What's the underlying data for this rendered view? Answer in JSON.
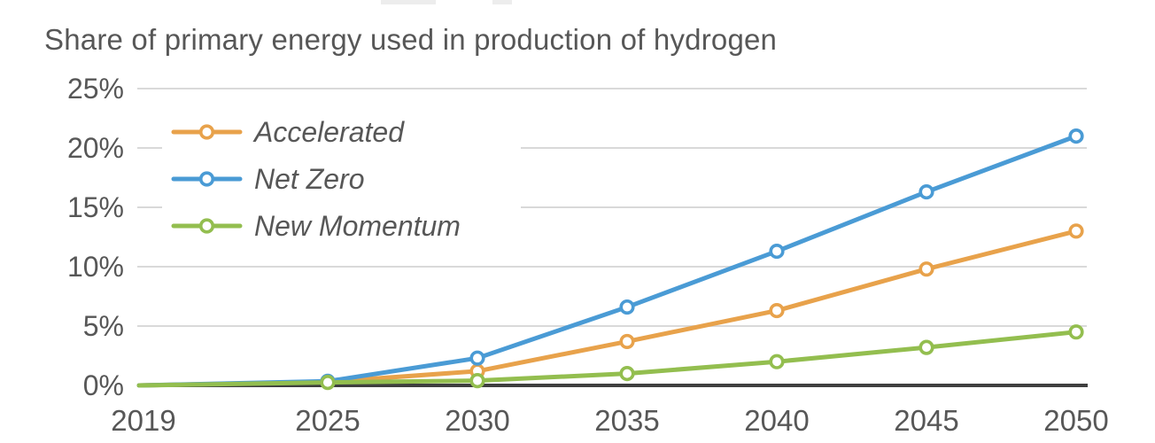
{
  "header": {
    "title": "Share of primary energy used in production of hydrogen"
  },
  "chart_data": {
    "type": "line",
    "title": "Share of primary energy used in production of hydrogen",
    "xlabel": "",
    "ylabel": "",
    "x_labels": [
      "2019",
      "2025",
      "2030",
      "2035",
      "2040",
      "2045",
      "2050"
    ],
    "y_ticks": [
      0,
      5,
      10,
      15,
      20,
      25
    ],
    "y_tick_labels": [
      "0%",
      "5%",
      "10%",
      "15%",
      "20%",
      "25%"
    ],
    "ylim": [
      0,
      25
    ],
    "grid": "horizontal-only",
    "legend_position": "top-left-inside",
    "marker_style": "open-circle",
    "series": [
      {
        "name": "Accelerated",
        "color": "#E8A24B",
        "values": [
          0,
          0.3,
          1.2,
          3.7,
          6.3,
          9.8,
          13.0
        ]
      },
      {
        "name": "Net Zero",
        "color": "#4A9BD5",
        "values": [
          0,
          0.35,
          2.3,
          6.6,
          11.3,
          16.3,
          21.0
        ]
      },
      {
        "name": "New Momentum",
        "color": "#93BE4F",
        "values": [
          0,
          0.25,
          0.4,
          1.0,
          2.0,
          3.2,
          4.5
        ]
      }
    ],
    "colors": {
      "axis_line": "#3f3f3f",
      "grid_line": "#d9d9d9",
      "text": "#575757",
      "background": "#ffffff"
    }
  }
}
